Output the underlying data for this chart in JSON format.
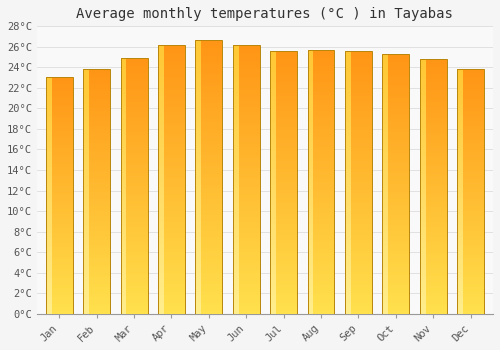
{
  "title": "Average monthly temperatures (°C ) in Tayabas",
  "months": [
    "Jan",
    "Feb",
    "Mar",
    "Apr",
    "May",
    "Jun",
    "Jul",
    "Aug",
    "Sep",
    "Oct",
    "Nov",
    "Dec"
  ],
  "values": [
    23.1,
    23.8,
    24.9,
    26.2,
    26.7,
    26.2,
    25.6,
    25.7,
    25.6,
    25.3,
    24.8,
    23.8
  ],
  "bar_edge_color": "#b8860b",
  "ylim": [
    0,
    28
  ],
  "ytick_step": 2,
  "background_color": "#f5f5f5",
  "plot_bg_color": "#f9f9f9",
  "grid_color": "#dddddd",
  "title_fontsize": 10,
  "tick_fontsize": 7.5,
  "font_family": "monospace",
  "bar_color_bottom": "#FFD700",
  "bar_color_top": "#FFA020",
  "bar_highlight_color": "#FFE870"
}
